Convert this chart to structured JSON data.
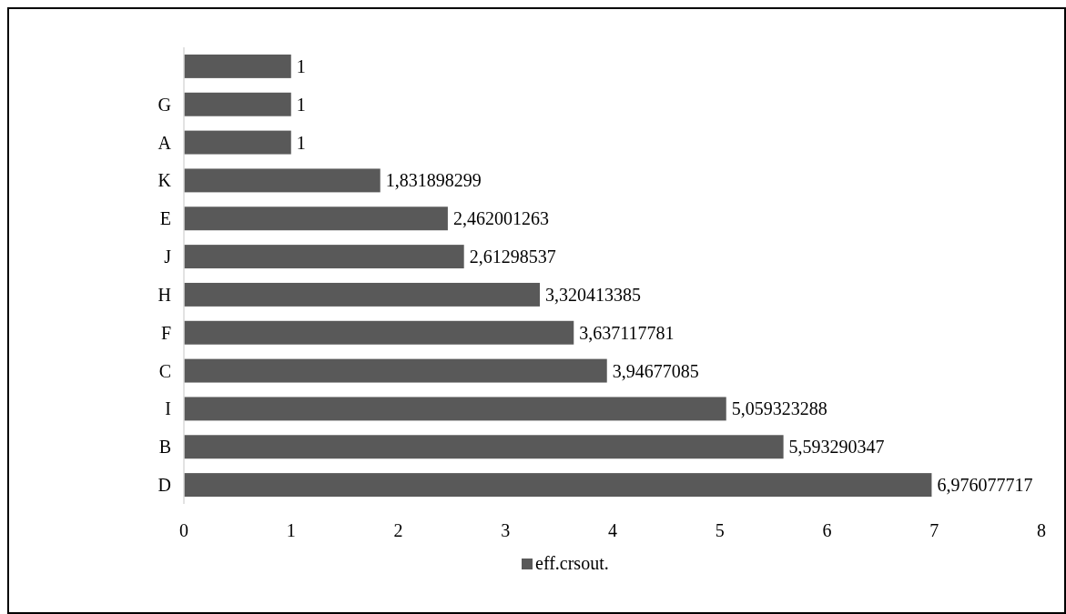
{
  "chart_data": {
    "type": "bar",
    "orientation": "horizontal",
    "categories": [
      null,
      "G",
      "A",
      "K",
      "E",
      "J",
      "H",
      "F",
      "C",
      "I",
      "B",
      "D"
    ],
    "series": [
      {
        "name": "eff.crsout.",
        "color": "#595959",
        "values": [
          1,
          1,
          1,
          1.831898299,
          2.462001263,
          2.61298537,
          3.320413385,
          3.637117781,
          3.94677085,
          5.059323288,
          5.593290347,
          6.976077717
        ],
        "value_labels": [
          "1",
          "1",
          "1",
          "1,831898299",
          "2,462001263",
          "2,61298537",
          "3,320413385",
          "3,637117781",
          "3,94677085",
          "5,059323288",
          "5,593290347",
          "6,976077717"
        ]
      }
    ],
    "xlim": [
      0,
      8
    ],
    "xticks": [
      0,
      1,
      2,
      3,
      4,
      5,
      6,
      7,
      8
    ],
    "grid": false,
    "legend": "bottom"
  }
}
